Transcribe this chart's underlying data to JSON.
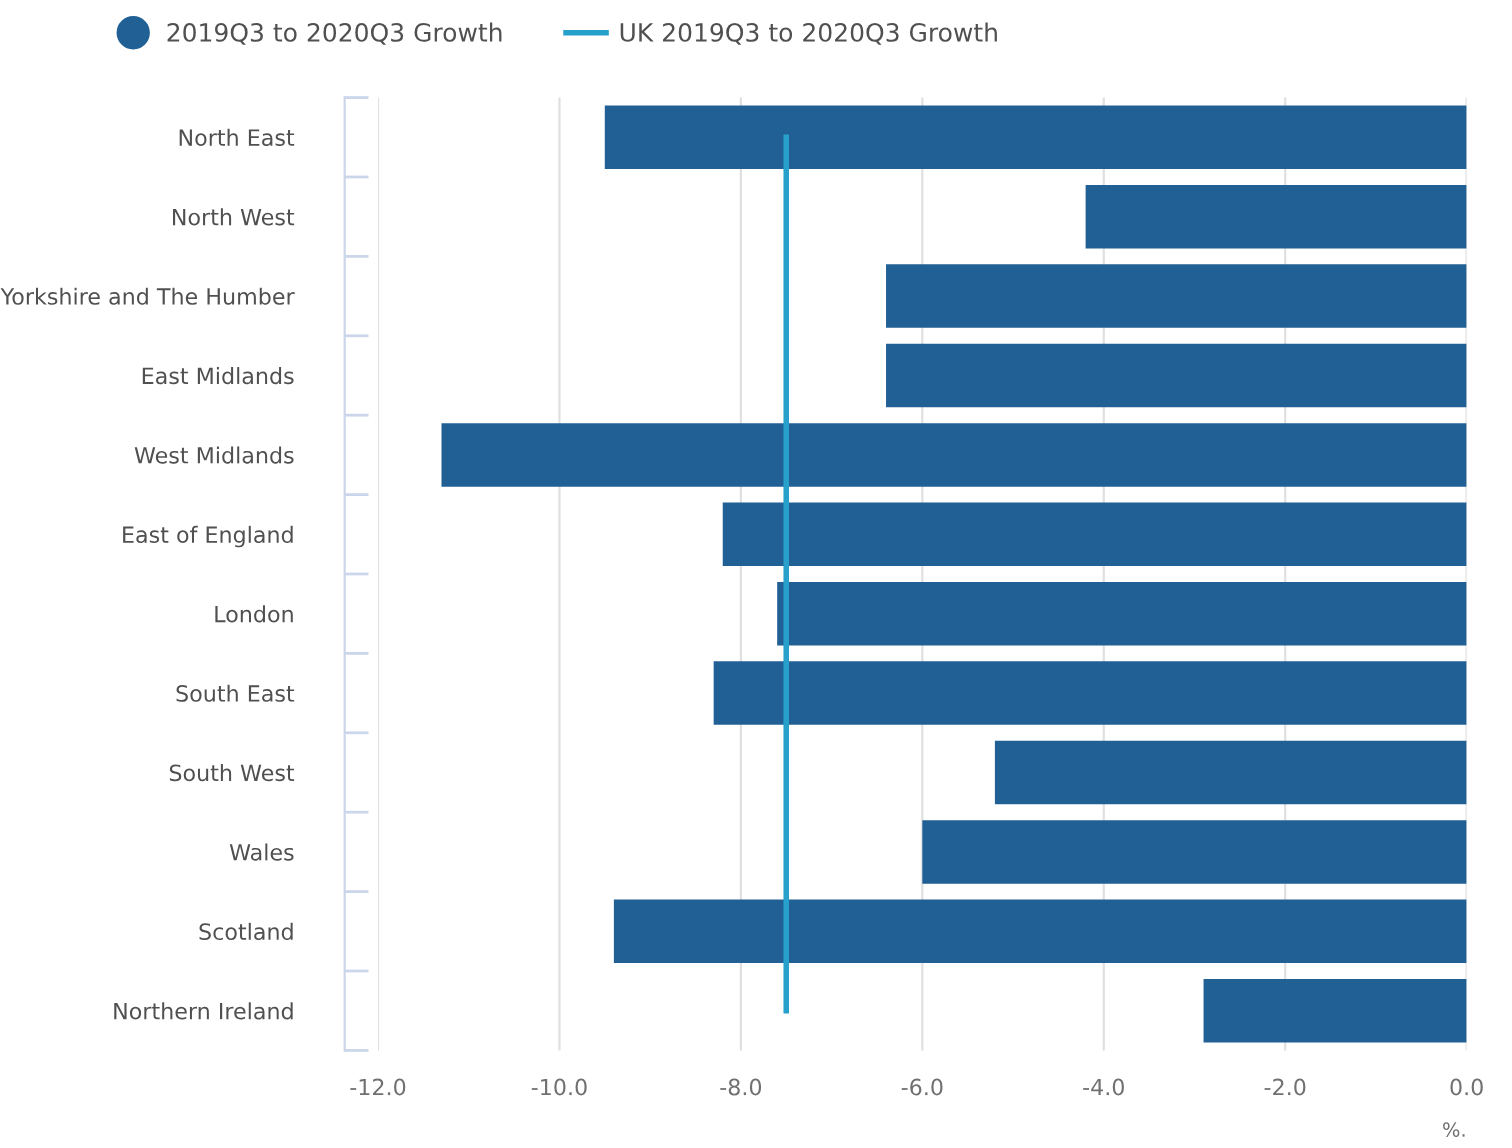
{
  "chart_data": {
    "type": "bar",
    "orientation": "horizontal",
    "xlabel": "%.",
    "categories": [
      "North East",
      "North West",
      "Yorkshire and The Humber",
      "East Midlands",
      "West Midlands",
      "East of England",
      "London",
      "South East",
      "South West",
      "Wales",
      "Scotland",
      "Northern Ireland"
    ],
    "series": [
      {
        "name": "2019Q3 to 2020Q3 Growth",
        "color": "#206095",
        "values": [
          -9.5,
          -4.2,
          -6.4,
          -6.4,
          -11.3,
          -8.2,
          -7.6,
          -8.3,
          -5.2,
          -6.0,
          -9.4,
          -2.9
        ]
      },
      {
        "name": "UK 2019Q3 to 2020Q3 Growth",
        "type": "line",
        "color": "#27a0cc",
        "values": [
          -7.5,
          -7.5,
          -7.5,
          -7.5,
          -7.5,
          -7.5,
          -7.5,
          -7.5,
          -7.5,
          -7.5,
          -7.5,
          -7.5
        ]
      }
    ],
    "xlim": [
      -12.0,
      0.0
    ],
    "xticks": [
      {
        "value": -12,
        "label": "-12.0"
      },
      {
        "value": -10,
        "label": "-10.0"
      },
      {
        "value": -8,
        "label": "-8.0"
      },
      {
        "value": -6,
        "label": "-6.0"
      },
      {
        "value": -4,
        "label": "-4.0"
      },
      {
        "value": -2,
        "label": "-2.0"
      },
      {
        "value": 0,
        "label": "0.0"
      }
    ],
    "grid": "x",
    "legend": "top left"
  }
}
